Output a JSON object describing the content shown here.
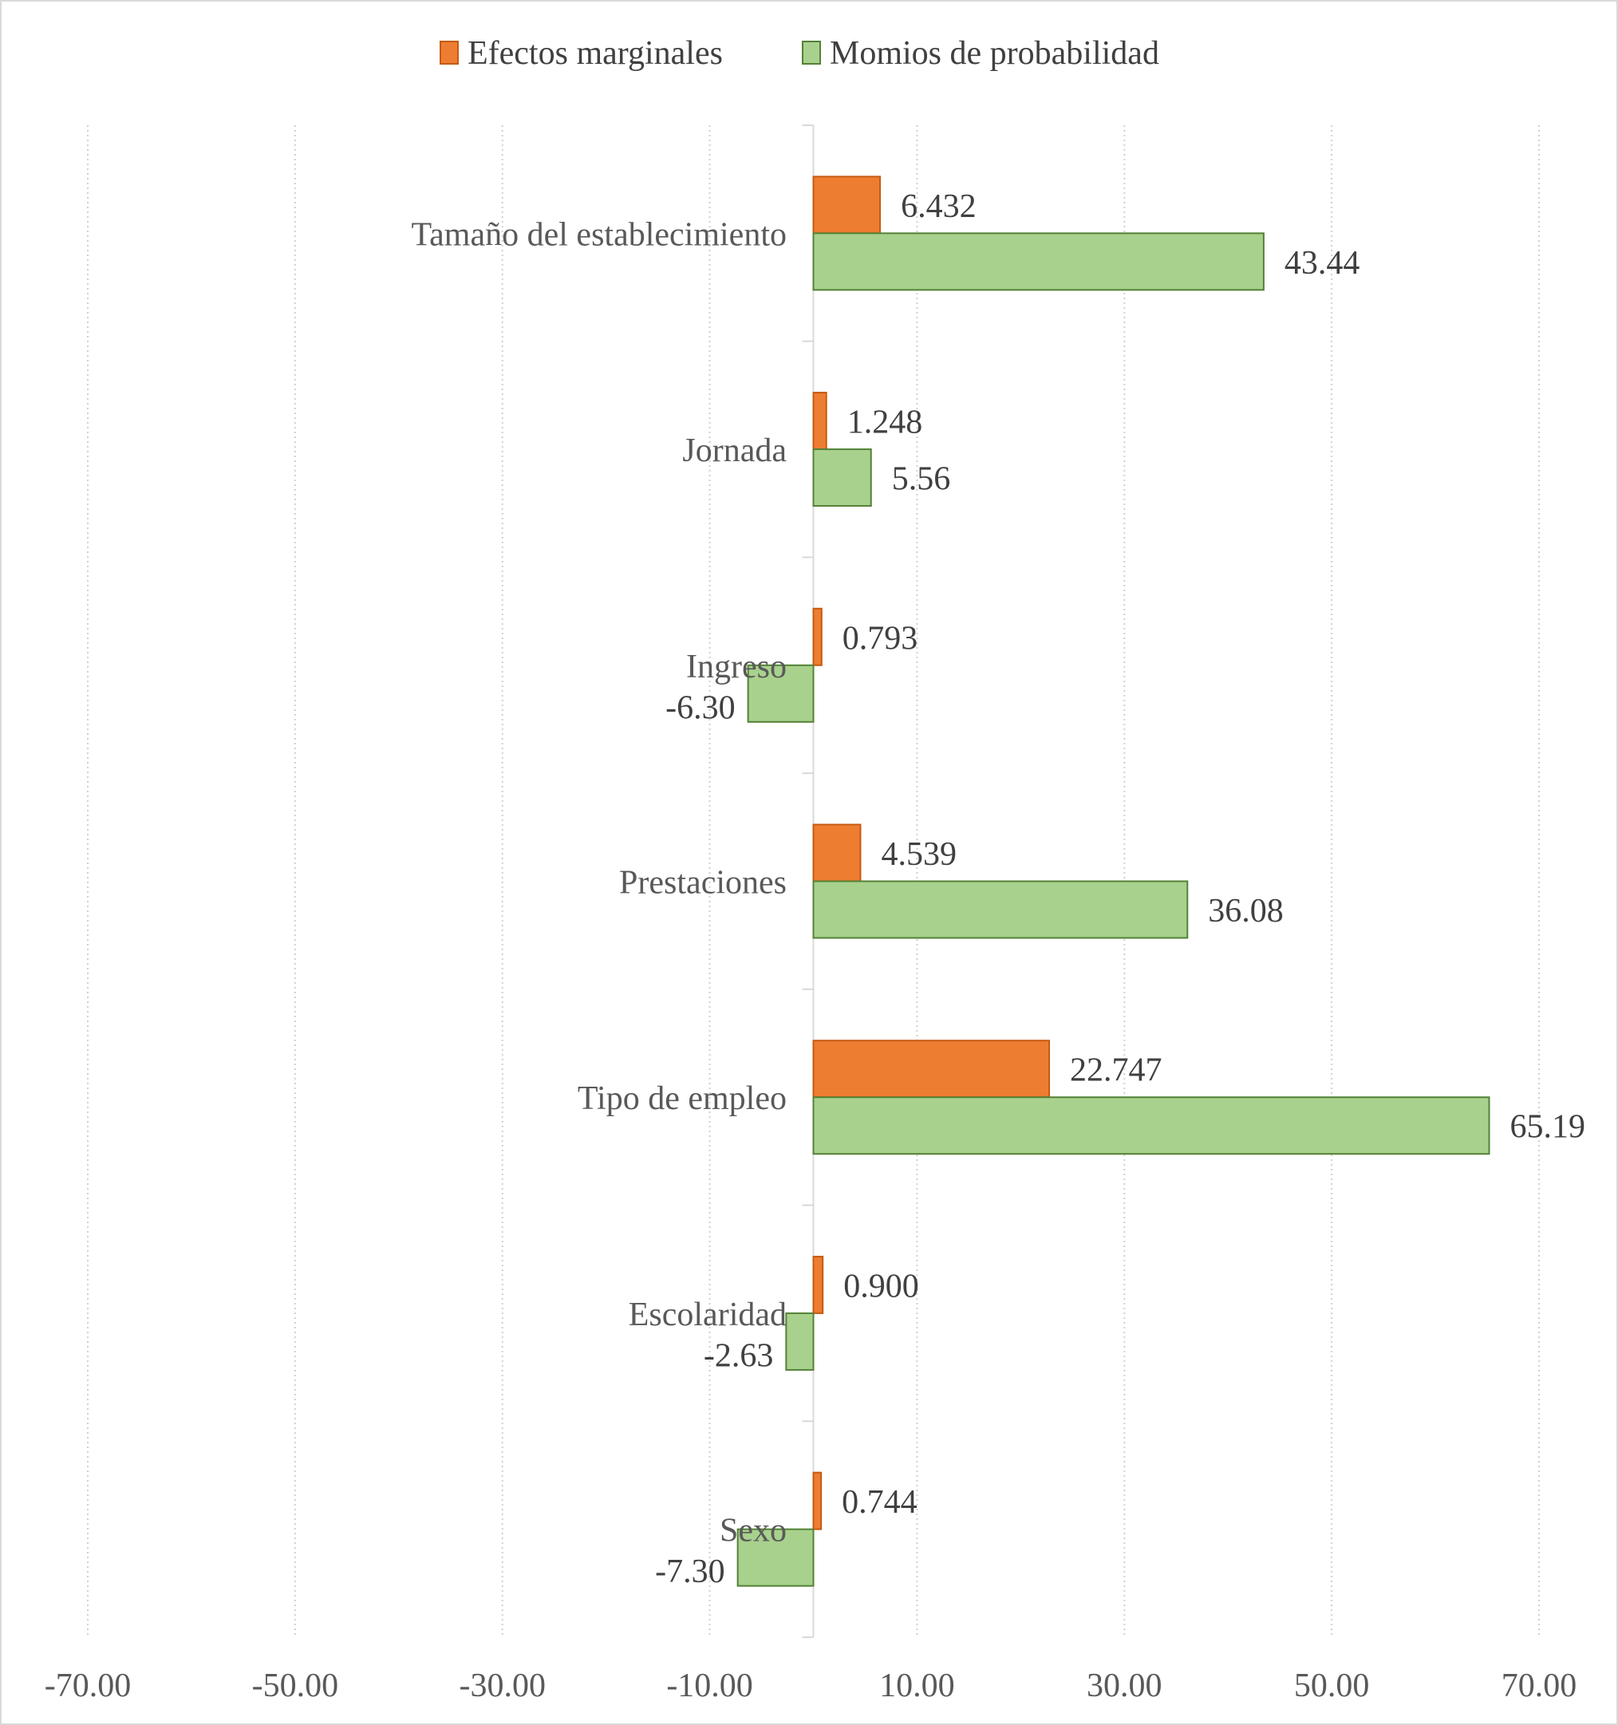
{
  "chart_data": {
    "type": "bar",
    "orientation": "horizontal",
    "title": "",
    "xlabel": "",
    "ylabel": "",
    "categories": [
      "Tamaño del establecimiento",
      "Jornada",
      "Ingreso",
      "Prestaciones",
      "Tipo de empleo",
      "Escolaridad",
      "Sexo"
    ],
    "series": [
      {
        "name": "Efectos marginales",
        "values": [
          6.432,
          1.248,
          0.793,
          4.539,
          22.747,
          0.9,
          0.744
        ],
        "labels": [
          "6.432",
          "1.248",
          "0.793",
          "4.539",
          "22.747",
          "0.900",
          "0.744"
        ],
        "color": "#ED7D31",
        "border": "#C55A11"
      },
      {
        "name": "Momios de probabilidad",
        "values": [
          43.44,
          5.56,
          -6.3,
          36.08,
          65.19,
          -2.63,
          -7.3
        ],
        "labels": [
          "43.44",
          "5.56",
          "-6.30",
          "36.08",
          "65.19",
          "-2.63",
          "-7.30"
        ],
        "color": "#A9D18E",
        "border": "#538135"
      }
    ],
    "xlim": [
      -70,
      70
    ],
    "xticks": [
      -70,
      -50,
      -30,
      -10,
      10,
      30,
      50,
      70
    ],
    "xtick_labels": [
      "-70.00",
      "-50.00",
      "-30.00",
      "-10.00",
      "10.00",
      "30.00",
      "50.00",
      "70.00"
    ],
    "grid": "vertical-dotted",
    "legend_position": "top"
  }
}
